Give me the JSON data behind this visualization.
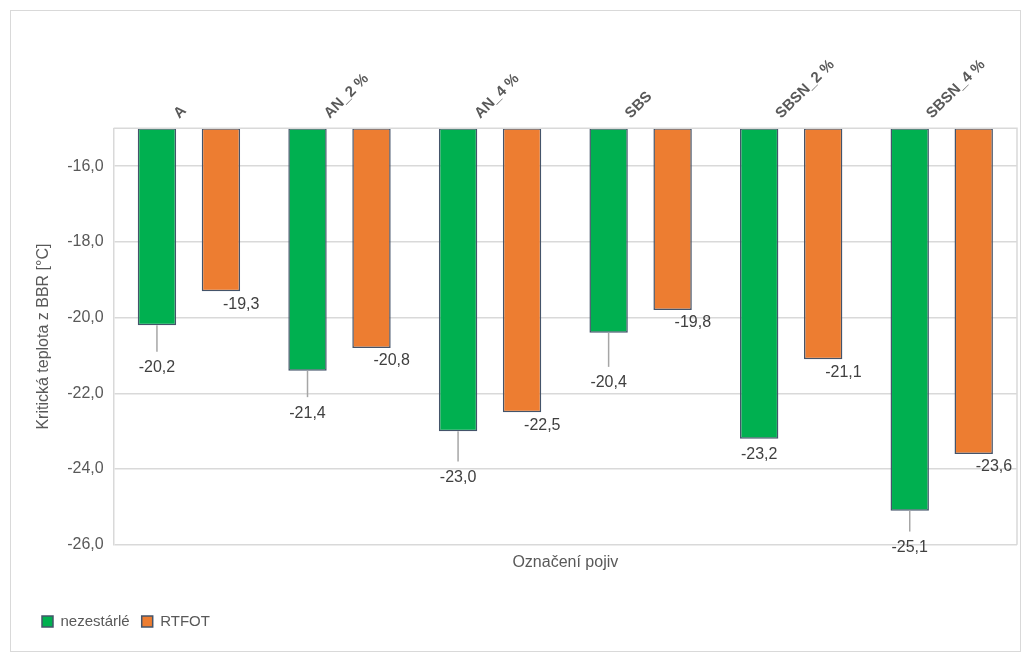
{
  "chart_data": {
    "type": "bar",
    "xlabel": "Označení pojiv",
    "ylabel": "Kritická teplota z BBR [°C]",
    "categories": [
      "A",
      "AN_2 %",
      "AN_4 %",
      "SBS",
      "SBSN_2 %",
      "SBSN_4 %"
    ],
    "series": [
      {
        "name": "nezestárlé",
        "color": "#00b050",
        "values": [
          -20.2,
          -21.4,
          -23.0,
          -20.4,
          -23.2,
          -25.1
        ],
        "errors": [
          [
            -20.9,
            -20.2
          ],
          [
            -22.1,
            -21.4
          ],
          [
            -23.8,
            -23.0
          ],
          [
            -21.3,
            -20.4
          ],
          null,
          [
            -25.65,
            -25.1
          ]
        ],
        "value_labels": [
          "-20,2",
          "-21,4",
          "-23,0",
          "-20,4",
          "-23,2",
          "-25,1"
        ]
      },
      {
        "name": "RTFOT",
        "color": "#ed7d31",
        "values": [
          -19.3,
          -20.8,
          -22.5,
          -19.8,
          -21.1,
          -23.6
        ],
        "value_labels": [
          "-19,3",
          "-20,8",
          "-22,5",
          "-19,8",
          "-21,1",
          "-23,6"
        ]
      }
    ],
    "ylim": [
      -26,
      -15
    ],
    "yticks": [
      {
        "value": -26,
        "label": "-26,0"
      },
      {
        "value": -24,
        "label": "-24,0"
      },
      {
        "value": -22,
        "label": "-22,0"
      },
      {
        "value": -20,
        "label": "-20,0"
      },
      {
        "value": -18,
        "label": "-18,0"
      },
      {
        "value": -16,
        "label": "-16,0"
      }
    ],
    "grid": "y",
    "legend": "bottom left"
  }
}
